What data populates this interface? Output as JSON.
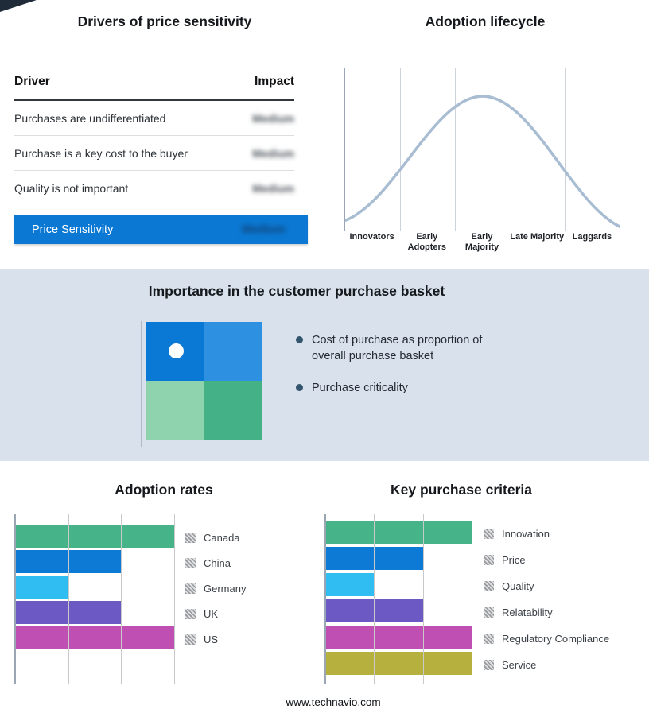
{
  "page": {
    "footer": "www.technavio.com",
    "mid_band_background": "#d9e2ec",
    "accent_blue": "#0b79d4"
  },
  "drivers_panel": {
    "title": "Drivers of price sensitivity",
    "table": {
      "col_driver": "Driver",
      "col_impact": "Impact",
      "rows": [
        {
          "driver": "Purchases are undifferentiated",
          "impact": "Medium",
          "impact_obscured": true
        },
        {
          "driver": "Purchase is a key cost to the buyer",
          "impact": "Medium",
          "impact_obscured": true
        },
        {
          "driver": "Quality is not important",
          "impact": "Medium",
          "impact_obscured": true
        }
      ]
    },
    "summary": {
      "label": "Price Sensitivity",
      "impact": "Medium",
      "impact_obscured": true,
      "banner_color": "#0b79d4"
    }
  },
  "basket_panel": {
    "title": "Importance in the customer purchase basket",
    "bullets": [
      "Cost of purchase as proportion of overall purchase basket",
      "Purchase criticality"
    ],
    "quadrant": {
      "cells": [
        "#0a79d6",
        "#2e90e0",
        "#8fd2ae",
        "#44b286"
      ],
      "dot_cell_index": 0,
      "dot_color": "#ffffff"
    }
  },
  "chart_data": [
    {
      "id": "adoption_lifecycle",
      "type": "line",
      "title": "Adoption lifecycle",
      "categories": [
        "Innovators",
        "Early Adopters",
        "Early Majority",
        "Late Majority",
        "Laggards"
      ],
      "shape": "bell_curve",
      "curve_color": "#a8bcd2",
      "axis_values_shown": false,
      "grid": true
    },
    {
      "id": "adoption_rates",
      "type": "bar",
      "title": "Adoption rates",
      "orientation": "horizontal",
      "categories": [
        "Canada",
        "China",
        "Germany",
        "UK",
        "US"
      ],
      "values": [
        3,
        2,
        1,
        2,
        3
      ],
      "xlim": [
        0,
        3
      ],
      "values_estimated_from_gridlines": true,
      "colors": [
        "#46b488",
        "#0d7ad5",
        "#30bdf2",
        "#6d59c4",
        "#c04fb4"
      ],
      "legend_position": "right",
      "grid": true
    },
    {
      "id": "key_purchase_criteria",
      "type": "bar",
      "title": "Key purchase criteria",
      "orientation": "horizontal",
      "categories": [
        "Innovation",
        "Price",
        "Quality",
        "Relatability",
        "Regulatory Compliance",
        "Service"
      ],
      "values": [
        3,
        2,
        1,
        2,
        3,
        3
      ],
      "xlim": [
        0,
        3
      ],
      "values_estimated_from_gridlines": true,
      "colors": [
        "#46b488",
        "#0d7ad5",
        "#30bdf2",
        "#6d59c4",
        "#c04fb4",
        "#b6b13f"
      ],
      "legend_position": "right",
      "grid": true
    }
  ]
}
